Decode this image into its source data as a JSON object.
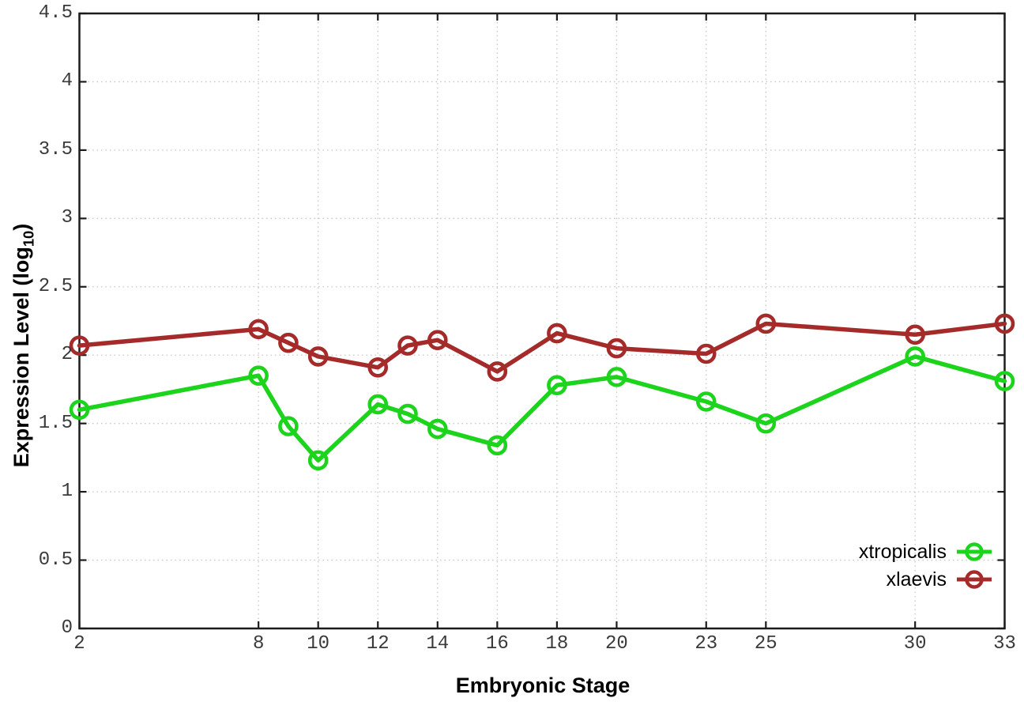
{
  "chart_data": {
    "type": "line",
    "title": "",
    "xlabel": "Embryonic Stage",
    "ylabel": "Expression Level (log10)",
    "ylabel_parts": {
      "prefix": "Expression Level (log",
      "sub": "10",
      "suffix": ")"
    },
    "xlim": [
      2,
      33
    ],
    "ylim": [
      0,
      4.5
    ],
    "grid": true,
    "legend_position": "bottom-right",
    "xticks": [
      2,
      8,
      10,
      12,
      14,
      16,
      18,
      20,
      23,
      25,
      30,
      33
    ],
    "xtick_labels": [
      "2",
      "8",
      "10",
      "12",
      "14",
      "16",
      "18",
      "20",
      "23",
      "25",
      "30",
      "33"
    ],
    "yticks": [
      0,
      0.5,
      1,
      1.5,
      2,
      2.5,
      3,
      3.5,
      4,
      4.5
    ],
    "ytick_labels": [
      "0",
      "0.5",
      "1",
      "1.5",
      "2",
      "2.5",
      "3",
      "3.5",
      "4",
      "4.5"
    ],
    "x": [
      2,
      8,
      9,
      10,
      12,
      13,
      14,
      16,
      18,
      20,
      23,
      25,
      30,
      33
    ],
    "series": [
      {
        "name": "xtropicalis",
        "color": "#1bd41b",
        "values": [
          1.6,
          1.85,
          1.48,
          1.23,
          1.64,
          1.57,
          1.46,
          1.34,
          1.78,
          1.84,
          1.66,
          1.5,
          1.99,
          1.81
        ]
      },
      {
        "name": "xlaevis",
        "color": "#a52a2a",
        "values": [
          2.07,
          2.19,
          2.09,
          1.99,
          1.91,
          2.07,
          2.11,
          1.88,
          2.16,
          2.05,
          2.01,
          2.23,
          2.15,
          2.23
        ]
      }
    ],
    "grid_color": "#c6c6c6",
    "axis_color": "#1c1c1c",
    "tick_label_color": "#3a3a3a",
    "background_color": "#ffffff"
  }
}
